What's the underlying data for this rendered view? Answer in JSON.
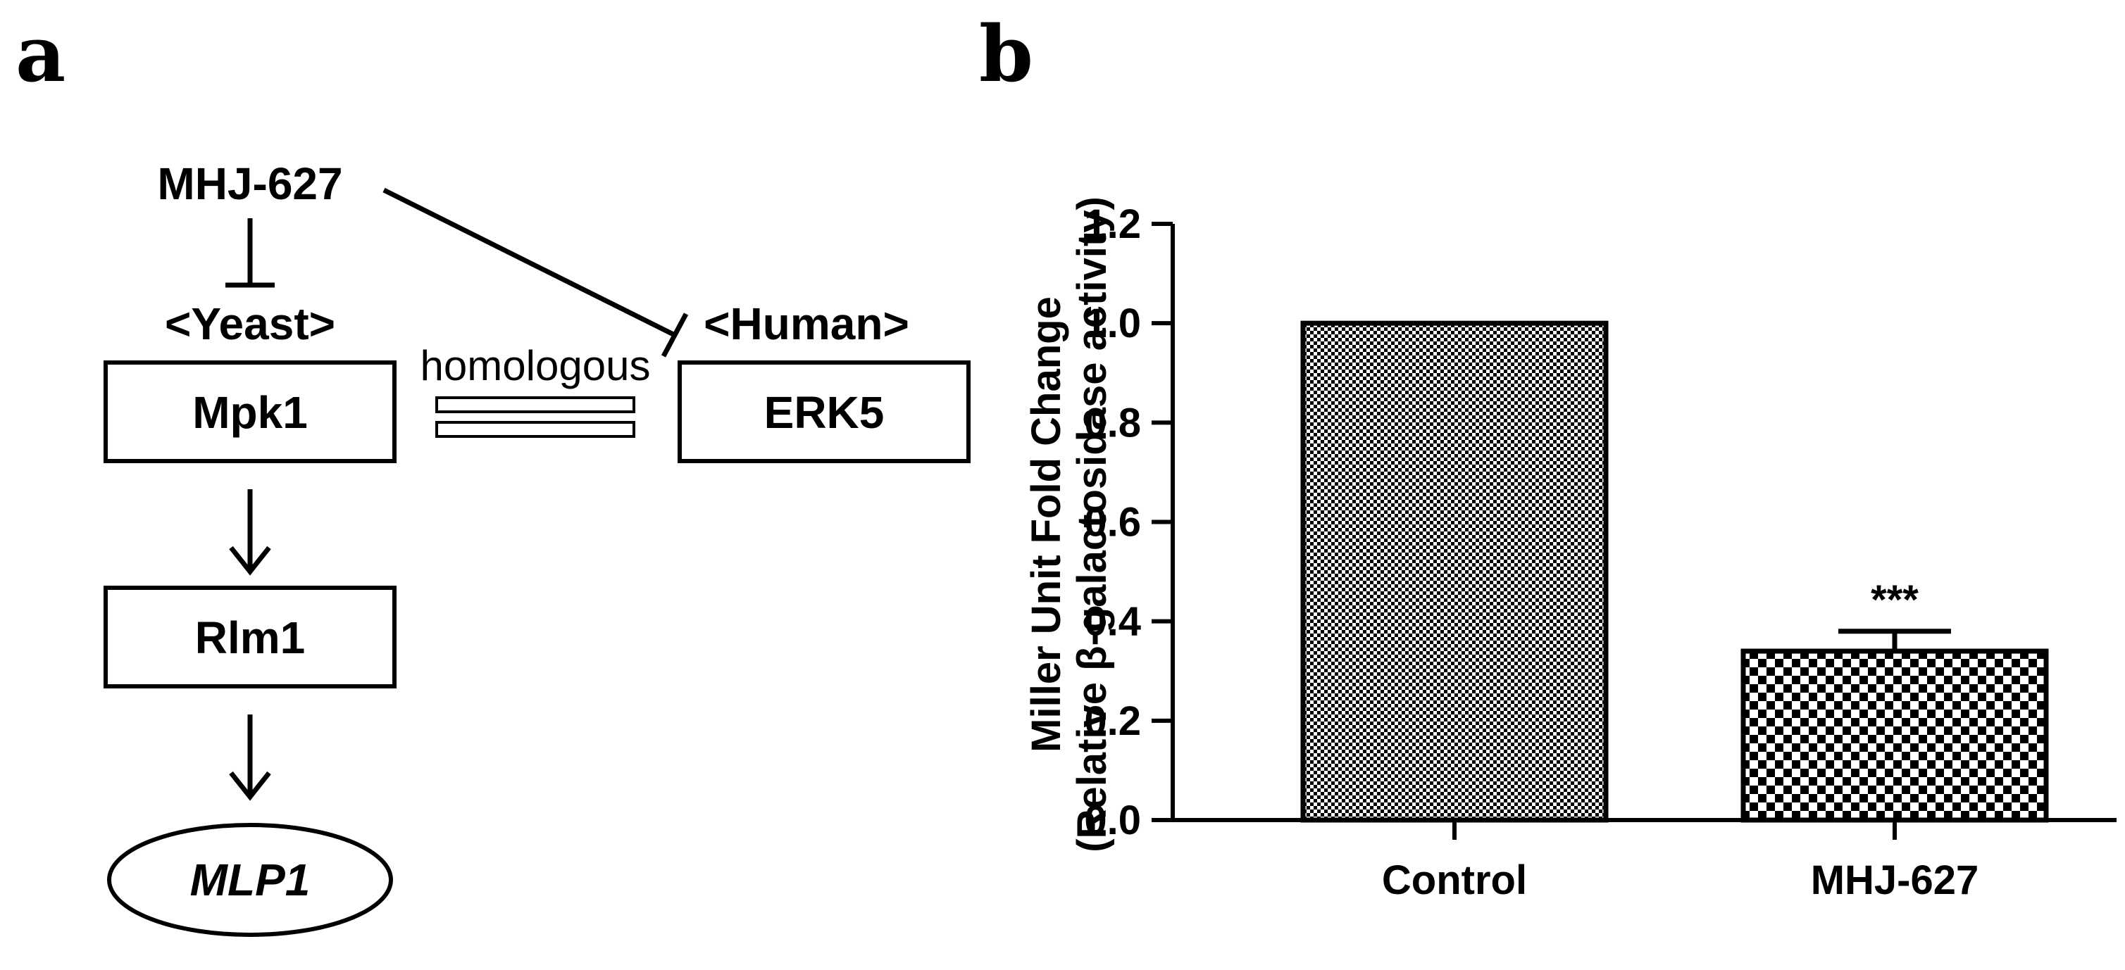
{
  "panel_a": {
    "letter": "a",
    "inhibitor": "MHJ-627",
    "yeast_label": "<Yeast>",
    "human_label": "<Human>",
    "homologous_label": "homologous",
    "node_mpk1": "Mpk1",
    "node_erk5": "ERK5",
    "node_rlm1": "Rlm1",
    "node_mlp1": "MLP1"
  },
  "panel_b": {
    "letter": "b"
  },
  "chart_data": {
    "type": "bar",
    "categories": [
      "Control",
      "MHJ-627"
    ],
    "values": [
      1.0,
      0.34
    ],
    "errors": [
      0,
      0.04
    ],
    "annotations": [
      "",
      "***"
    ],
    "title": "",
    "xlabel": "",
    "ylabel_line1": "Miller Unit Fold  Change",
    "ylabel_line2": "(Relative β-galactosidase activity)",
    "ylim": [
      0,
      1.2
    ],
    "yticks": [
      0.0,
      0.2,
      0.4,
      0.6,
      0.8,
      1.0,
      1.2
    ],
    "ytick_labels": [
      "0.0",
      "0.2",
      "0.4",
      "0.6",
      "0.8",
      "1.0",
      "1.2"
    ],
    "grid": false,
    "legend": "none",
    "bar_pattern": [
      "fine-checker",
      "coarse-checker"
    ],
    "colors": {
      "bar_fill": "#000000",
      "bar_background": "#ffffff",
      "axis": "#000000"
    }
  }
}
